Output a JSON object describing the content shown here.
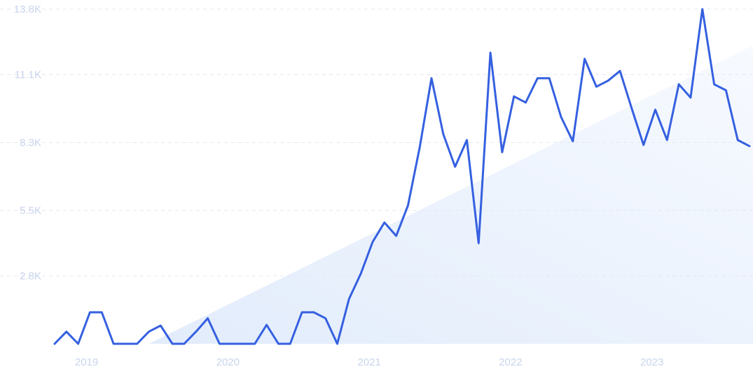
{
  "chart_data": {
    "type": "line",
    "title": "",
    "xlabel": "",
    "ylabel": "",
    "ylim": [
      0,
      13800
    ],
    "y_ticks": [
      {
        "value": 2800,
        "label": "2.8K"
      },
      {
        "value": 5500,
        "label": "5.5K"
      },
      {
        "value": 8300,
        "label": "8.3K"
      },
      {
        "value": 11100,
        "label": "11.1K"
      },
      {
        "value": 13800,
        "label": "13.8K"
      }
    ],
    "x_ticks": [
      {
        "value": "2019-01",
        "label": "2019"
      },
      {
        "value": "2020-01",
        "label": "2020"
      },
      {
        "value": "2021-01",
        "label": "2021"
      },
      {
        "value": "2022-01",
        "label": "2022"
      },
      {
        "value": "2023-01",
        "label": "2023"
      }
    ],
    "grid": true,
    "legend": "none",
    "colors": {
      "line": "#3560e0",
      "trend_fill_start": "#e2ecfb",
      "trend_fill_end": "#f7faff",
      "grid": "#e3e8f2",
      "tick_text": "#c8d4ec"
    },
    "trend": {
      "start": {
        "x": "2019-07",
        "y": 0
      },
      "end": {
        "x": "2023-10",
        "y": 12300
      }
    },
    "series": [
      {
        "x": [
          "2018-11",
          "2018-12",
          "2019-01",
          "2019-02",
          "2019-03",
          "2019-04",
          "2019-05",
          "2019-06",
          "2019-07",
          "2019-08",
          "2019-09",
          "2019-10",
          "2019-11",
          "2019-12",
          "2020-01",
          "2020-02",
          "2020-03",
          "2020-04",
          "2020-05",
          "2020-06",
          "2020-07",
          "2020-08",
          "2020-09",
          "2020-10",
          "2020-11",
          "2020-12",
          "2021-01",
          "2021-02",
          "2021-03",
          "2021-04",
          "2021-05",
          "2021-06",
          "2021-07",
          "2021-08",
          "2021-09",
          "2021-10",
          "2021-11",
          "2021-12",
          "2022-01",
          "2022-02",
          "2022-03",
          "2022-04",
          "2022-05",
          "2022-06",
          "2022-07",
          "2022-08",
          "2022-09",
          "2022-10",
          "2022-11",
          "2022-12",
          "2023-01",
          "2023-02",
          "2023-03",
          "2023-04",
          "2023-05",
          "2023-06",
          "2023-07",
          "2023-08",
          "2023-09",
          "2023-10"
        ],
        "values": [
          0,
          500,
          0,
          1300,
          1300,
          0,
          0,
          0,
          500,
          750,
          0,
          0,
          500,
          1050,
          0,
          0,
          0,
          0,
          780,
          0,
          0,
          1300,
          1300,
          1050,
          0,
          1850,
          2900,
          4200,
          5000,
          4450,
          5700,
          8100,
          10950,
          8650,
          7300,
          8400,
          4150,
          12000,
          7900,
          10200,
          9950,
          10950,
          10950,
          9350,
          8350,
          11750,
          10600,
          10850,
          11250,
          9700,
          8200,
          9650,
          8400,
          10700,
          10150,
          13800,
          10700,
          10450,
          8400,
          8150
        ]
      }
    ]
  }
}
